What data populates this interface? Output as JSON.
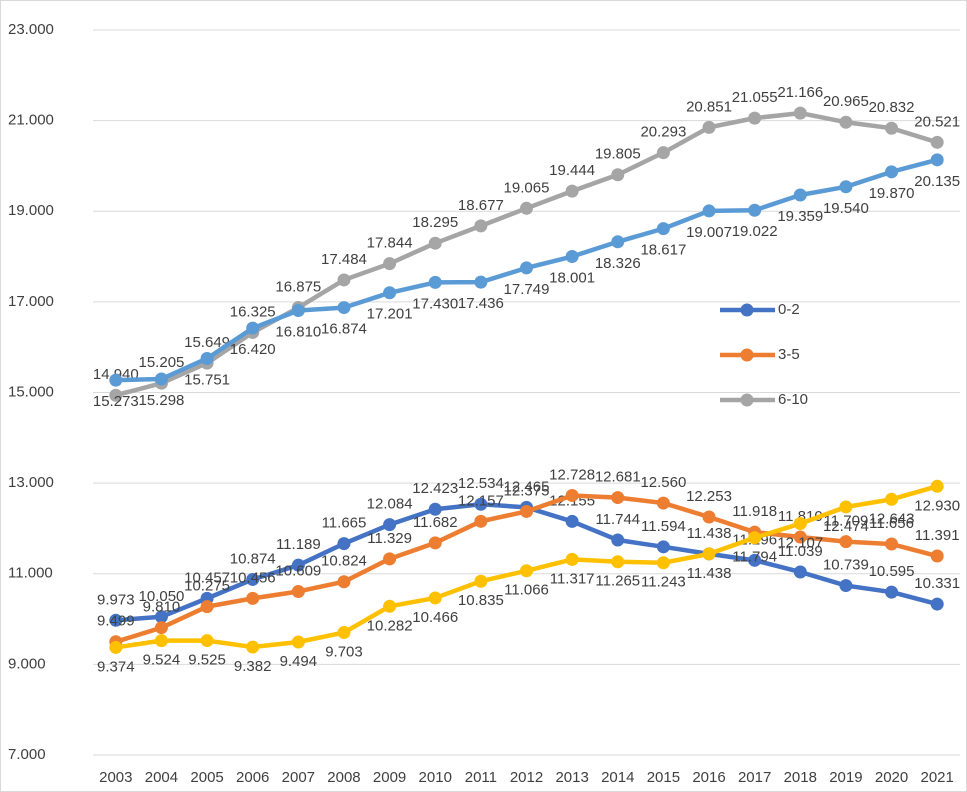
{
  "chart_data": {
    "type": "line",
    "x": [
      2003,
      2004,
      2005,
      2006,
      2007,
      2008,
      2009,
      2010,
      2011,
      2012,
      2013,
      2014,
      2015,
      2016,
      2017,
      2018,
      2019,
      2020,
      2021
    ],
    "series": [
      {
        "name": "0-2",
        "color": "#4472c4",
        "values": [
          9.973,
          10.05,
          10.457,
          10.874,
          11.189,
          11.665,
          12.084,
          12.423,
          12.534,
          12.465,
          12.155,
          11.744,
          11.594,
          11.438,
          11.296,
          11.039,
          10.739,
          10.595,
          10.331
        ],
        "value_labels": [
          "9.973",
          "10.050",
          "10.457",
          "10.874",
          "11.189",
          "11.665",
          "12.084",
          "12.423",
          "12.534",
          "12.465",
          "12.155",
          "11.744",
          "11.594",
          "11.438",
          "11.296",
          "11.039",
          "10.739",
          "10.595",
          "10.331"
        ]
      },
      {
        "name": "3-5",
        "color": "#ed7d31",
        "values": [
          9.499,
          9.81,
          10.275,
          10.456,
          10.609,
          10.824,
          11.329,
          11.682,
          12.157,
          12.375,
          12.728,
          12.681,
          12.56,
          12.253,
          11.918,
          11.81,
          11.709,
          11.656,
          11.391
        ],
        "value_labels": [
          "9.499",
          "9.810",
          "10.275",
          "10.456",
          "10.609",
          "10.824",
          "11.329",
          "11.682",
          "12.157",
          "12.375",
          "12.728",
          "12.681",
          "12.560",
          "12.253",
          "11.918",
          "11.810",
          "11.709",
          "11.656",
          "11.391"
        ]
      },
      {
        "name": "6-10",
        "color": "#a5a5a5",
        "values": [
          14.94,
          15.205,
          15.649,
          16.325,
          16.875,
          17.484,
          17.844,
          18.295,
          18.677,
          19.065,
          19.444,
          19.805,
          20.293,
          20.851,
          21.055,
          21.166,
          20.965,
          20.832,
          20.521
        ],
        "value_labels": [
          "14.940",
          "15.205",
          "15.649",
          "16.325",
          "16.875",
          "17.484",
          "17.844",
          "18.295",
          "18.677",
          "19.065",
          "19.444",
          "19.805",
          "20.293",
          "20.851",
          "21.055",
          "21.166",
          "20.965",
          "20.832",
          "20.521"
        ]
      },
      {
        "color": "#5b9bd5",
        "values": [
          15.273,
          15.298,
          15.751,
          16.42,
          16.81,
          16.874,
          17.201,
          17.43,
          17.436,
          17.749,
          18.001,
          18.326,
          18.617,
          19.007,
          19.022,
          19.359,
          19.54,
          19.87,
          20.135
        ],
        "value_labels": [
          "15.273",
          "15.298",
          "15.751",
          "16.420",
          "16.810",
          "16.874",
          "17.201",
          "17.430",
          "17.436",
          "17.749",
          "18.001",
          "18.326",
          "18.617",
          "19.007",
          "19.022",
          "19.359",
          "19.540",
          "19.870",
          "20.135"
        ]
      },
      {
        "color": "#ffc000",
        "values": [
          9.374,
          9.524,
          9.525,
          9.382,
          9.494,
          9.703,
          10.282,
          10.466,
          10.835,
          11.066,
          11.317,
          11.265,
          11.243,
          11.438,
          11.794,
          12.107,
          12.474,
          12.643,
          12.93
        ],
        "value_labels": [
          "9.374",
          "9.524",
          "9.525",
          "9.382",
          "9.494",
          "9.703",
          "10.282",
          "10.466",
          "10.835",
          "11.066",
          "11.317",
          "11.265",
          "11.243",
          "11.438",
          "11.794",
          "12.107",
          "12.474",
          "12.643",
          "12.930"
        ]
      }
    ],
    "ylim": [
      7,
      23
    ],
    "yticks": [
      {
        "value": 7,
        "label": "7.000"
      },
      {
        "value": 9,
        "label": "9.000"
      },
      {
        "value": 11,
        "label": "11.000"
      },
      {
        "value": 13,
        "label": "13.000"
      },
      {
        "value": 15,
        "label": "15.000"
      },
      {
        "value": 17,
        "label": "17.000"
      },
      {
        "value": 19,
        "label": "19.000"
      },
      {
        "value": 21,
        "label": "21.000"
      },
      {
        "value": 23,
        "label": "23.000"
      }
    ],
    "grid": true,
    "legend": "right"
  }
}
